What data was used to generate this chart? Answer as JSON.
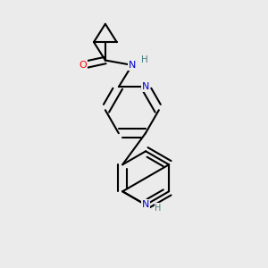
{
  "background_color": "#ebebeb",
  "bond_color": "#000000",
  "atom_colors": {
    "N": "#0000cc",
    "O": "#ff0000",
    "C": "#000000",
    "H": "#4a8080"
  },
  "bond_width": 1.5
}
